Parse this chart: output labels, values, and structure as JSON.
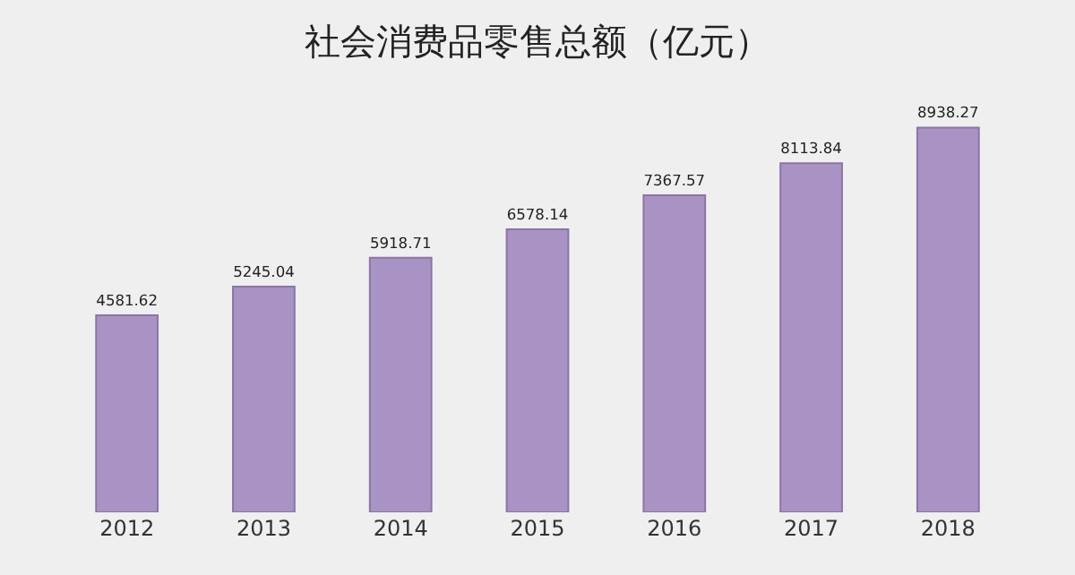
{
  "chart_data": {
    "type": "bar",
    "title": "社会消费品零售总额（亿元）",
    "categories": [
      "2012",
      "2013",
      "2014",
      "2015",
      "2016",
      "2017",
      "2018"
    ],
    "values": [
      4581.62,
      5245.04,
      5918.71,
      6578.14,
      7367.57,
      8113.84,
      8938.27
    ],
    "color": "#a893c4",
    "data_labels": true
  }
}
